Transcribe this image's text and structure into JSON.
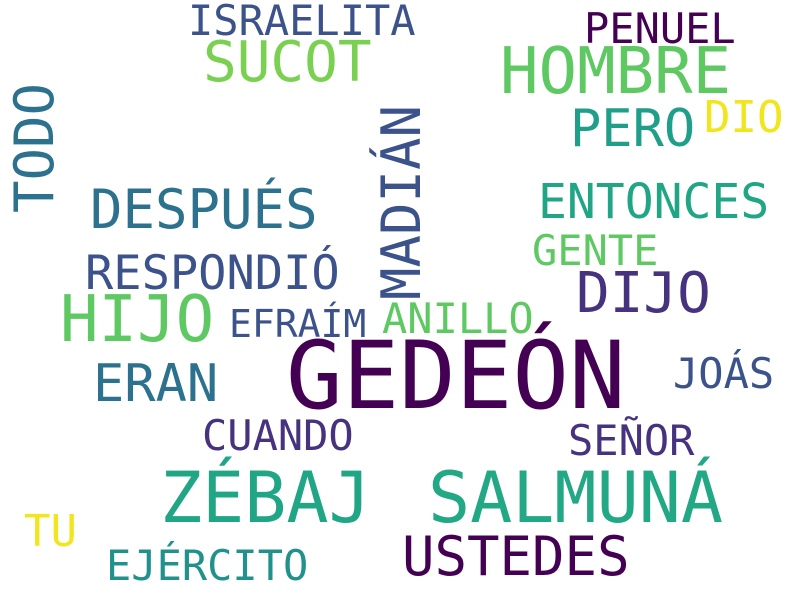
{
  "words": [
    {
      "text": "GEDEÓN",
      "color": "#440154"
    },
    {
      "text": "ZÉBAJ",
      "color": "#21a685"
    },
    {
      "text": "SALMUNÁ",
      "color": "#22a884"
    },
    {
      "text": "HOMBRE",
      "color": "#5ec962"
    },
    {
      "text": "HIJO",
      "color": "#5ec962"
    },
    {
      "text": "MADIÁN",
      "color": "#3b528b"
    },
    {
      "text": "SUCOT",
      "color": "#7ad151"
    },
    {
      "text": "TODO",
      "color": "#2c728e"
    },
    {
      "text": "DESPUÉS",
      "color": "#2c728e"
    },
    {
      "text": "DIJO",
      "color": "#46327e"
    },
    {
      "text": "USTEDES",
      "color": "#440154"
    },
    {
      "text": "ERAN",
      "color": "#2c728e"
    },
    {
      "text": "RESPONDIÓ",
      "color": "#3b528b"
    },
    {
      "text": "ENTONCES",
      "color": "#21a685"
    },
    {
      "text": "PERO",
      "color": "#1f9e89"
    },
    {
      "text": "ISRAELITA",
      "color": "#3b528b"
    },
    {
      "text": "PENUEL",
      "color": "#440154"
    },
    {
      "text": "GENTE",
      "color": "#5ec962"
    },
    {
      "text": "ANILLO",
      "color": "#5ec962"
    },
    {
      "text": "EFRAÍM",
      "color": "#3b528b"
    },
    {
      "text": "CUANDO",
      "color": "#46327e"
    },
    {
      "text": "SEÑOR",
      "color": "#46327e"
    },
    {
      "text": "JOÁS",
      "color": "#3b528b"
    },
    {
      "text": "EJÉRCITO",
      "color": "#21918c"
    },
    {
      "text": "DIO",
      "color": "#f1e51d"
    },
    {
      "text": "TU",
      "color": "#f1e51d"
    }
  ]
}
